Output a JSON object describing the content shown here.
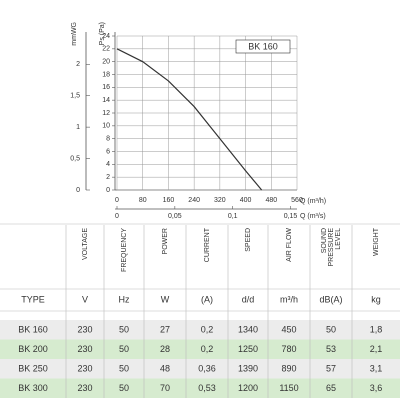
{
  "chart_data": {
    "type": "line",
    "y_label": "Ps (Pa)",
    "y2_label": "mmWG",
    "x_label": "Q (m³/h)",
    "x2_label": "Q (m³/s)",
    "x": [
      0,
      80,
      160,
      240,
      320,
      400,
      450
    ],
    "series": [
      {
        "name": "BK 160",
        "color": "#333333",
        "values": [
          22,
          20,
          17,
          13,
          8,
          3,
          0
        ]
      }
    ],
    "xlim": [
      0,
      560
    ],
    "xticks": [
      0,
      80,
      160,
      240,
      320,
      400,
      480,
      560
    ],
    "ylim": [
      0,
      24
    ],
    "yticks": [
      0,
      2,
      4,
      6,
      8,
      10,
      12,
      14,
      16,
      18,
      20,
      22,
      24
    ],
    "y2lim": [
      0,
      2.45
    ],
    "y2ticks": [
      0,
      {
        "value": 0.5,
        "label": "0,5"
      },
      1,
      {
        "value": 1.5,
        "label": "1,5"
      },
      2
    ],
    "x2lim": [
      0,
      0.1556
    ],
    "x2ticks": [
      0,
      {
        "value": 0.05,
        "label": "0,05"
      },
      {
        "value": 0.1,
        "label": "0,1"
      },
      {
        "value": 0.15,
        "label": "0,15"
      }
    ],
    "grid": true,
    "legend": "top-right"
  },
  "table": {
    "headers": [
      [
        "VOLTAGE"
      ],
      [
        "FREQUENCY"
      ],
      [
        "POWER"
      ],
      [
        "CURRENT"
      ],
      [
        "SPEED"
      ],
      [
        "AIR FLOW"
      ],
      [
        "SOUND",
        "PRESSURE",
        "LEVEL"
      ],
      [
        "WEIGHT"
      ]
    ],
    "units": [
      "TYPE",
      "V",
      "Hz",
      "W",
      "(A)",
      "d/d",
      "m³/h",
      "dB(A)",
      "kg"
    ],
    "rows": [
      [
        "BK 160",
        "230",
        "50",
        "27",
        "0,2",
        "1340",
        "450",
        "50",
        "1,8"
      ],
      [
        "BK 200",
        "230",
        "50",
        "28",
        "0,2",
        "1250",
        "780",
        "53",
        "2,1"
      ],
      [
        "BK 250",
        "230",
        "50",
        "48",
        "0,36",
        "1390",
        "890",
        "57",
        "3,1"
      ],
      [
        "BK 300",
        "230",
        "50",
        "70",
        "0,53",
        "1200",
        "1150",
        "65",
        "3,6"
      ]
    ]
  }
}
